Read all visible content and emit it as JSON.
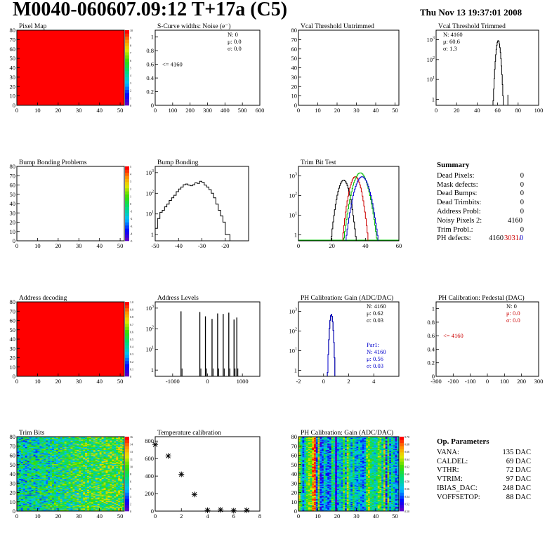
{
  "header": {
    "title": "M0040-060607.09:12 T+17a (C5)",
    "timestamp": "Thu Nov 13 19:37:01 2008"
  },
  "colors": {
    "hist_line": "#000000",
    "fit_blue": "#0000cc",
    "stat_red": "#cc0000",
    "map_red": "#ff0000",
    "trim_green": "#00bb00"
  },
  "chart_data": [
    {
      "id": "pixel-map",
      "type": "heatmap",
      "title": "Pixel Map",
      "xlim": [
        0,
        52
      ],
      "ylim": [
        0,
        80
      ],
      "x_ticks": [
        0,
        10,
        20,
        30,
        40,
        50
      ],
      "y_ticks": [
        0,
        10,
        20,
        30,
        40,
        50,
        60,
        70,
        80
      ],
      "fill": "uniform-red",
      "z_range": [
        0,
        10
      ]
    },
    {
      "id": "scurve-widths",
      "type": "histogram",
      "title": "S-Curve widths: Noise (e⁻)",
      "xlim": [
        0,
        600
      ],
      "ylim": [
        0,
        1.1
      ],
      "x_ticks": [
        0,
        100,
        200,
        300,
        400,
        500,
        600
      ],
      "y_ticks": [
        0,
        0.2,
        0.4,
        0.6,
        0.8,
        1
      ],
      "stats": [
        "N:    0",
        "μ:  0.0",
        "σ:  0.0"
      ],
      "annotation": "<= 4160"
    },
    {
      "id": "vcal-untrimmed",
      "type": "histogram",
      "title": "Vcal Threshold Untrimmed",
      "xlim": [
        0,
        52
      ],
      "ylim": [
        0,
        80
      ],
      "x_ticks": [
        0,
        10,
        20,
        30,
        40,
        50
      ],
      "y_ticks": [
        0,
        10,
        20,
        30,
        40,
        50,
        60,
        70,
        80
      ]
    },
    {
      "id": "vcal-trimmed",
      "type": "histogram",
      "title": "Vcal Threshold Trimmed",
      "log_y": true,
      "xlim": [
        0,
        100
      ],
      "ylim": [
        0.5,
        3000
      ],
      "x_ticks": [
        0,
        20,
        40,
        60,
        80,
        100
      ],
      "y_ticks": [
        1,
        10,
        100,
        1000
      ],
      "stats": [
        "N: 4160",
        "μ:  60.6",
        "σ:   1.3"
      ],
      "peaks": [
        [
          60.6,
          1.3,
          900
        ]
      ],
      "extra": [
        [
          70,
          1
        ]
      ]
    },
    {
      "id": "bump-problems",
      "type": "heatmap",
      "title": "Bump Bonding Problems",
      "xlim": [
        0,
        52
      ],
      "ylim": [
        0,
        80
      ],
      "x_ticks": [
        0,
        10,
        20,
        30,
        40,
        50
      ],
      "y_ticks": [
        0,
        10,
        20,
        30,
        40,
        50,
        60,
        70,
        80
      ],
      "fill": "empty",
      "z_range": [
        -5,
        5
      ]
    },
    {
      "id": "bump-bonding",
      "type": "histogram",
      "title": "Bump Bonding",
      "log_y": true,
      "xlim": [
        -50,
        -10
      ],
      "ylim": [
        0.5,
        2000
      ],
      "x_ticks": [
        -50,
        -40,
        -30,
        -20
      ],
      "y_ticks": [
        1,
        10,
        100,
        1000
      ],
      "x": [
        -50,
        -49,
        -48,
        -47,
        -46,
        -45,
        -44,
        -43,
        -42,
        -41,
        -40,
        -39,
        -38,
        -37,
        -36,
        -35,
        -34,
        -33,
        -32,
        -31,
        -30,
        -29,
        -28,
        -27,
        -26,
        -25,
        -24,
        -23,
        -22,
        -21,
        -20,
        -19,
        -18
      ],
      "values": [
        2,
        6,
        12,
        15,
        22,
        30,
        45,
        60,
        80,
        120,
        160,
        200,
        260,
        280,
        250,
        230,
        260,
        320,
        300,
        380,
        340,
        250,
        200,
        150,
        100,
        60,
        30,
        15,
        8,
        4,
        1,
        1,
        0
      ]
    },
    {
      "id": "trim-bit-test",
      "type": "line",
      "title": "Trim Bit Test",
      "log_y": true,
      "xlim": [
        0,
        60
      ],
      "ylim": [
        0.5,
        3000
      ],
      "x_ticks": [
        0,
        20,
        40,
        60
      ],
      "y_ticks": [
        1,
        10,
        100,
        1000
      ],
      "series": [
        {
          "color": "#000000",
          "peaks": [
            [
              27,
              2,
              600
            ]
          ]
        },
        {
          "color": "#cc0000",
          "peaks": [
            [
              34,
              2,
              900
            ]
          ]
        },
        {
          "color": "#00bb00",
          "peaks": [
            [
              37,
              2.5,
              1400
            ]
          ]
        },
        {
          "color": "#0000cc",
          "peaks": [
            [
              38,
              2.5,
              900
            ]
          ]
        }
      ]
    },
    {
      "id": "address-decoding",
      "type": "heatmap",
      "title": "Address decoding",
      "xlim": [
        0,
        52
      ],
      "ylim": [
        0,
        80
      ],
      "x_ticks": [
        0,
        10,
        20,
        30,
        40,
        50
      ],
      "y_ticks": [
        0,
        10,
        20,
        30,
        40,
        50,
        60,
        70,
        80
      ],
      "fill": "uniform-red",
      "z_range": [
        0,
        1
      ]
    },
    {
      "id": "address-levels",
      "type": "histogram",
      "title": "Address Levels",
      "log_y": true,
      "xlim": [
        -1500,
        1500
      ],
      "ylim": [
        0.5,
        2000
      ],
      "x_ticks": [
        -1000,
        0,
        1000
      ],
      "y_ticks": [
        1,
        10,
        100,
        1000
      ],
      "spikes": [
        [
          -760,
          700
        ],
        [
          -220,
          650
        ],
        [
          -60,
          400
        ],
        [
          130,
          300
        ],
        [
          290,
          550
        ],
        [
          450,
          520
        ],
        [
          610,
          600
        ],
        [
          760,
          280
        ],
        [
          840,
          350
        ]
      ]
    },
    {
      "id": "ph-gain",
      "type": "histogram",
      "title": "PH Calibration: Gain (ADC/DAC)",
      "log_y": true,
      "xlim": [
        -2,
        6
      ],
      "ylim": [
        0.5,
        3000
      ],
      "x_ticks": [
        -2,
        0,
        2,
        4
      ],
      "y_ticks": [
        1,
        10,
        100,
        1000
      ],
      "stats": [
        "N: 4160",
        "μ:  0.62",
        "σ:  0.03"
      ],
      "fit_stats": [
        "Par1:",
        "N: 4160",
        "μ:  0.56",
        "σ:  0.03"
      ],
      "peaks": [
        [
          0.62,
          0.08,
          700
        ]
      ]
    },
    {
      "id": "ph-pedestal",
      "type": "histogram",
      "title": "PH Calibration: Pedestal (DAC)",
      "xlim": [
        -300,
        300
      ],
      "ylim": [
        0,
        1.1
      ],
      "x_ticks": [
        -300,
        -200,
        -100,
        0,
        100,
        200,
        300
      ],
      "y_ticks": [
        0,
        0.2,
        0.4,
        0.6,
        0.8,
        1
      ],
      "stats": [
        "N:    0",
        "μ:  0.0",
        "σ:  0.0"
      ],
      "annotation": "<= 4160"
    },
    {
      "id": "trim-bits",
      "type": "heatmap",
      "title": "Trim Bits",
      "xlim": [
        0,
        52
      ],
      "ylim": [
        0,
        80
      ],
      "x_ticks": [
        0,
        10,
        20,
        30,
        40,
        50
      ],
      "y_ticks": [
        0,
        10,
        20,
        30,
        40,
        50,
        60,
        70,
        80
      ],
      "fill": "noise-trim",
      "z_range": [
        0,
        16
      ]
    },
    {
      "id": "temperature-calibration",
      "type": "scatter",
      "title": "Temperature calibration",
      "xlim": [
        0,
        8
      ],
      "ylim": [
        0,
        850
      ],
      "x_ticks": [
        0,
        2,
        4,
        6,
        8
      ],
      "y_ticks": [
        0,
        200,
        400,
        600,
        800
      ],
      "x": [
        0,
        1,
        2,
        3,
        4,
        5,
        6,
        7
      ],
      "y": [
        760,
        630,
        420,
        190,
        10,
        15,
        5,
        10
      ]
    },
    {
      "id": "ph-gain-map",
      "type": "heatmap",
      "title": "PH Calibration: Gain (ADC/DAC)",
      "xlim": [
        0,
        52
      ],
      "ylim": [
        0,
        80
      ],
      "x_ticks": [
        0,
        10,
        20,
        30,
        40,
        50
      ],
      "y_ticks": [
        0,
        10,
        20,
        30,
        40,
        50,
        60,
        70,
        80
      ],
      "fill": "noise-gain",
      "z_range": [
        0.5,
        0.7
      ]
    }
  ],
  "summary": {
    "heading": "Summary",
    "rows": [
      {
        "label": "Dead Pixels:",
        "value": "0"
      },
      {
        "label": "Mask defects:",
        "value": "0"
      },
      {
        "label": "Dead Bumps:",
        "value": "0"
      },
      {
        "label": "Dead Trimbits:",
        "value": "0"
      },
      {
        "label": "Address Probl:",
        "value": "0"
      },
      {
        "label": "Noisy Pixels 2:",
        "value": "4160"
      },
      {
        "label": "Trim Probl.:",
        "value": "0"
      }
    ],
    "ph_label": "PH defects:",
    "ph_black": "4160",
    "ph_red": "3031/",
    "ph_blue": "0"
  },
  "op_params": {
    "heading": "Op. Parameters",
    "rows": [
      {
        "label": "VANA:",
        "value": "135 DAC"
      },
      {
        "label": "CALDEL:",
        "value": "69 DAC"
      },
      {
        "label": "VTHR:",
        "value": "72 DAC"
      },
      {
        "label": "VTRIM:",
        "value": "97 DAC"
      },
      {
        "label": "IBIAS_DAC:",
        "value": "248 DAC"
      },
      {
        "label": "VOFFSETOP:",
        "value": "88 DAC"
      }
    ]
  }
}
